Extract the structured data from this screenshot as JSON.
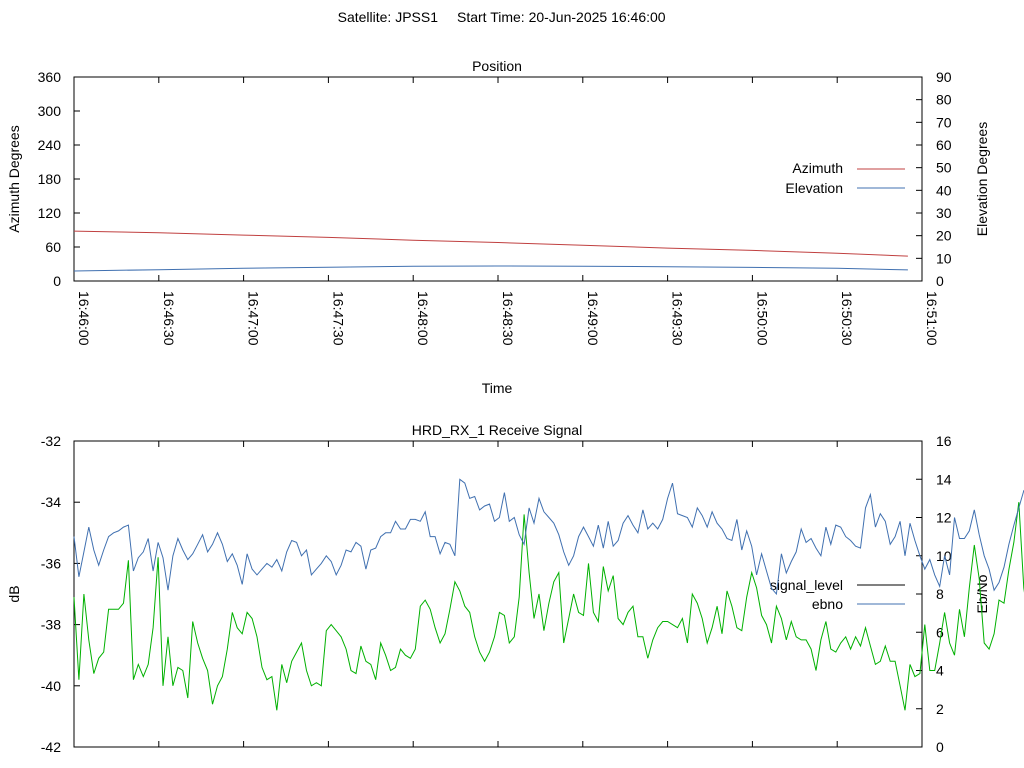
{
  "header": {
    "satellite": "Satellite: JPSS1",
    "start_time": "Start Time: 20-Jun-2025 16:46:00"
  },
  "chart_data": [
    {
      "type": "line",
      "title": "Position",
      "xlabel": "Time",
      "ylabel": "Azimuth Degrees",
      "y2label": "Elevation Degrees",
      "xlim": [
        "16:46:00",
        "16:51:00"
      ],
      "ylim": [
        0,
        360
      ],
      "y2lim": [
        0,
        90
      ],
      "yticks": [
        0,
        60,
        120,
        180,
        240,
        300,
        360
      ],
      "y2ticks": [
        0,
        10,
        20,
        30,
        40,
        50,
        60,
        70,
        80,
        90
      ],
      "xticks": [
        "16:46:00",
        "16:46:30",
        "16:47:00",
        "16:47:30",
        "16:48:00",
        "16:48:30",
        "16:49:00",
        "16:49:30",
        "16:50:00",
        "16:50:30",
        "16:51:00"
      ],
      "legend_position": "right",
      "series": [
        {
          "name": "Azimuth",
          "axis": "left",
          "color": "#c04040",
          "x": [
            "16:46:00",
            "16:46:30",
            "16:47:00",
            "16:47:30",
            "16:48:00",
            "16:48:30",
            "16:49:00",
            "16:49:30",
            "16:50:00",
            "16:50:30",
            "16:50:55"
          ],
          "values": [
            88,
            85,
            81,
            77,
            72,
            68,
            63,
            58,
            54,
            49,
            44
          ]
        },
        {
          "name": "Elevation",
          "axis": "right",
          "color": "#4070b0",
          "x": [
            "16:46:00",
            "16:46:30",
            "16:47:00",
            "16:47:30",
            "16:48:00",
            "16:48:30",
            "16:49:00",
            "16:49:30",
            "16:50:00",
            "16:50:30",
            "16:50:55"
          ],
          "values": [
            4.4,
            5.0,
            5.6,
            6.1,
            6.5,
            6.6,
            6.5,
            6.3,
            6.0,
            5.6,
            4.9
          ]
        }
      ]
    },
    {
      "type": "line",
      "title": "HRD_RX_1 Receive Signal",
      "ylabel": "dB",
      "y2label": "Eb/No",
      "xlim": [
        "16:46:00",
        "16:51:00"
      ],
      "ylim": [
        -42,
        -32
      ],
      "y2lim": [
        0,
        16
      ],
      "yticks": [
        -42,
        -40,
        -38,
        -36,
        -34,
        -32
      ],
      "y2ticks": [
        0,
        2,
        4,
        6,
        8,
        10,
        12,
        14,
        16
      ],
      "legend_position": "right",
      "series": [
        {
          "name": "signal_level",
          "axis": "left",
          "color": "#00b000",
          "x_start": "16:46:00",
          "x_step_seconds": 1.75,
          "values": [
            -37.1,
            -39.8,
            -37.0,
            -38.5,
            -39.6,
            -39.1,
            -38.9,
            -37.5,
            -37.5,
            -37.5,
            -37.3,
            -35.9,
            -39.8,
            -39.3,
            -39.7,
            -39.3,
            -38.1,
            -35.8,
            -40.0,
            -38.4,
            -40.0,
            -39.4,
            -39.5,
            -40.4,
            -37.9,
            -38.6,
            -39.1,
            -39.5,
            -40.6,
            -40.0,
            -39.7,
            -38.8,
            -37.6,
            -38.1,
            -38.3,
            -37.6,
            -37.8,
            -38.4,
            -39.4,
            -39.8,
            -39.7,
            -40.8,
            -39.3,
            -39.9,
            -39.2,
            -38.9,
            -38.6,
            -39.5,
            -40.0,
            -39.9,
            -40.0,
            -38.2,
            -38.0,
            -38.2,
            -38.4,
            -38.8,
            -39.5,
            -39.6,
            -38.7,
            -39.2,
            -39.3,
            -39.8,
            -38.6,
            -39.0,
            -39.5,
            -39.4,
            -38.8,
            -39.0,
            -39.1,
            -38.8,
            -37.4,
            -37.2,
            -37.5,
            -38.1,
            -38.6,
            -38.3,
            -37.5,
            -36.6,
            -36.9,
            -37.4,
            -37.6,
            -38.4,
            -38.9,
            -39.2,
            -38.9,
            -38.4,
            -37.6,
            -37.7,
            -38.6,
            -38.4,
            -37.1,
            -34.4,
            -36.3,
            -37.8,
            -37.0,
            -38.2,
            -37.3,
            -36.6,
            -36.3,
            -38.6,
            -37.8,
            -37.0,
            -37.6,
            -37.7,
            -36.0,
            -37.6,
            -37.9,
            -36.1,
            -36.9,
            -36.4,
            -37.8,
            -38.0,
            -37.6,
            -37.4,
            -38.4,
            -38.4,
            -39.1,
            -38.5,
            -38.1,
            -37.9,
            -37.9,
            -38.0,
            -38.1,
            -37.8,
            -38.6,
            -37.0,
            -37.3,
            -37.8,
            -38.6,
            -38.1,
            -37.4,
            -38.3,
            -36.9,
            -37.4,
            -38.1,
            -38.2,
            -37.1,
            -36.3,
            -36.8,
            -37.7,
            -38.0,
            -38.6,
            -37.4,
            -37.8,
            -38.5,
            -37.9,
            -38.4,
            -38.5,
            -38.5,
            -38.8,
            -39.5,
            -38.5,
            -37.9,
            -38.8,
            -38.9,
            -38.6,
            -38.4,
            -38.8,
            -38.4,
            -38.7,
            -38.1,
            -38.7,
            -39.3,
            -39.2,
            -38.7,
            -39.2,
            -39.2,
            -40.0,
            -40.8,
            -39.3,
            -39.7,
            -39.6,
            -38.0,
            -39.5,
            -39.5,
            -38.6,
            -37.6,
            -38.6,
            -39.0,
            -37.5,
            -38.4,
            -36.8,
            -35.4,
            -36.5,
            -38.6,
            -38.8,
            -38.3,
            -37.2,
            -37.3,
            -36.2,
            -35.3,
            -34.0,
            -36.8,
            -37.9,
            -36.3,
            -34.7,
            -36.3,
            -35.1,
            -36.6,
            -37.4,
            -36.3,
            -34.7,
            -37.2,
            -38.1,
            -37.9,
            -38.5,
            -38.4
          ]
        },
        {
          "name": "ebno",
          "axis": "right",
          "color": "#4070b0",
          "x_start": "16:46:00",
          "x_step_seconds": 1.75,
          "values": [
            11.0,
            8.9,
            10.2,
            11.5,
            10.3,
            9.5,
            10.3,
            11.0,
            11.2,
            11.3,
            11.5,
            11.6,
            9.2,
            9.9,
            10.2,
            10.9,
            9.2,
            10.7,
            9.9,
            8.2,
            10.0,
            10.9,
            10.3,
            9.8,
            10.1,
            10.6,
            11.1,
            10.2,
            10.6,
            11.2,
            10.6,
            9.7,
            10.1,
            9.5,
            8.5,
            10.1,
            9.3,
            9.0,
            9.3,
            9.6,
            9.4,
            9.8,
            9.2,
            10.2,
            10.8,
            10.7,
            10.0,
            10.3,
            9.0,
            9.3,
            9.6,
            10.0,
            9.7,
            9.0,
            9.5,
            10.3,
            10.2,
            10.7,
            10.5,
            9.3,
            10.3,
            10.4,
            11.0,
            11.2,
            11.2,
            11.8,
            11.4,
            11.4,
            11.9,
            11.9,
            11.8,
            12.3,
            11.0,
            11.0,
            10.1,
            10.7,
            10.6,
            10.0,
            14.0,
            13.8,
            13.0,
            13.1,
            12.4,
            12.6,
            12.7,
            11.8,
            12.0,
            13.3,
            11.8,
            12.0,
            11.1,
            10.6,
            12.5,
            11.7,
            13.0,
            12.3,
            12.0,
            11.7,
            11.1,
            10.2,
            9.5,
            10.0,
            11.0,
            11.5,
            11.0,
            10.5,
            11.6,
            10.4,
            11.8,
            10.5,
            10.8,
            11.7,
            12.1,
            11.6,
            11.2,
            12.4,
            11.4,
            11.7,
            11.4,
            11.9,
            13.0,
            13.8,
            12.2,
            12.1,
            12.0,
            11.5,
            12.5,
            12.1,
            11.5,
            12.3,
            11.7,
            11.4,
            10.9,
            10.8,
            11.9,
            10.3,
            11.3,
            10.5,
            9.0,
            10.1,
            9.2,
            8.3,
            8.0,
            10.1,
            9.1,
            9.7,
            10.2,
            11.4,
            10.7,
            10.9,
            10.4,
            10.0,
            11.5,
            10.6,
            11.6,
            11.5,
            11.0,
            10.8,
            10.5,
            10.4,
            12.5,
            13.2,
            11.5,
            12.2,
            11.8,
            10.6,
            11.0,
            11.8,
            10.0,
            11.7,
            10.8,
            10.0,
            9.3,
            9.8,
            9.0,
            8.4,
            10.0,
            9.0,
            12.0,
            10.9,
            10.9,
            11.3,
            12.4,
            11.1,
            10.0,
            9.3,
            8.2,
            8.6,
            9.4,
            10.6,
            11.6,
            12.5,
            13.4,
            13.2,
            12.4,
            12.8,
            11.4,
            11.6,
            13.2,
            14.4,
            13.0,
            12.9,
            12.5,
            13.4,
            13.8,
            13.7,
            11.4,
            11.8,
            12.0,
            12.2,
            12.8,
            13.5,
            12.7,
            12.6,
            10.2,
            12.1,
            11.0,
            10.5,
            12.7,
            12.5,
            12.6,
            11.8,
            10.6,
            11.7,
            12.5,
            13.0,
            11.4,
            11.7,
            12.3,
            13.8,
            11.8,
            10.6,
            12.3,
            11.1,
            10.8,
            10.5,
            10.1,
            11.5,
            11.5,
            12.0,
            12.4,
            11.8,
            13.9,
            11.4,
            10.9,
            9.9
          ]
        }
      ]
    }
  ]
}
